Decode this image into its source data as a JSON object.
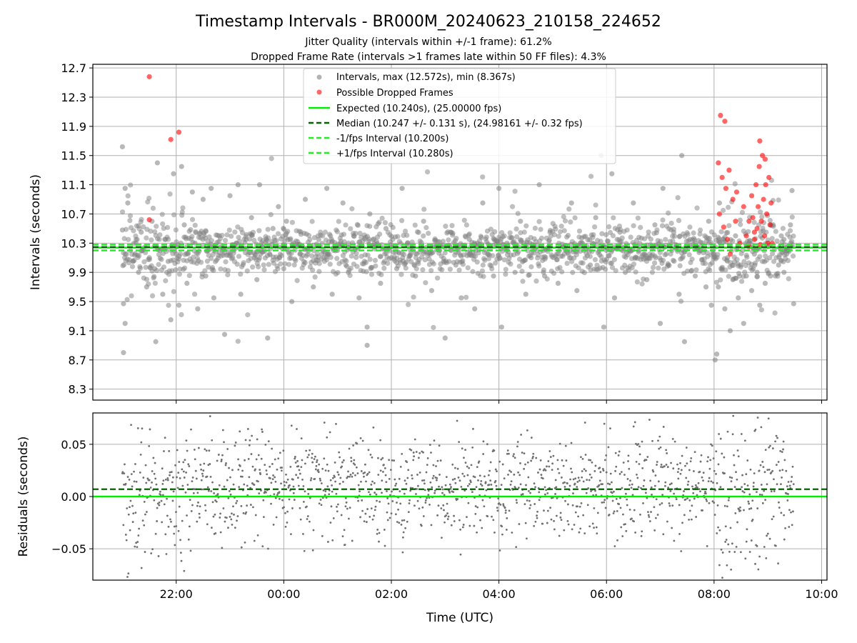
{
  "chart_data": {
    "title": "Timestamp Intervals - BR000M_20240623_210158_224652",
    "subtitle_1": "Jitter Quality (intervals within +/-1 frame): 61.2%",
    "subtitle_2": "Dropped Frame Rate (intervals >1 frames late within 50 FF files): 4.3%",
    "xlabel": "Time (UTC)",
    "x_ticks": [
      "22:00",
      "00:00",
      "02:00",
      "04:00",
      "06:00",
      "08:00",
      "10:00"
    ],
    "x_tick_hours": [
      22,
      24,
      26,
      28,
      30,
      32,
      34
    ],
    "x_range_hours": [
      20.45,
      34.1
    ],
    "top": {
      "type": "scatter",
      "ylabel": "Intervals (seconds)",
      "ylim": [
        8.15,
        12.75
      ],
      "y_ticks": [
        "8.3",
        "8.7",
        "9.1",
        "9.5",
        "9.9",
        "10.3",
        "10.7",
        "11.1",
        "11.5",
        "11.9",
        "12.3",
        "12.7"
      ],
      "y_tick_values": [
        8.3,
        8.7,
        9.1,
        9.5,
        9.9,
        10.3,
        10.7,
        11.1,
        11.5,
        11.9,
        12.3,
        12.7
      ],
      "grid": true,
      "expected": 10.24,
      "median": 10.247,
      "minus_fps": 10.2,
      "plus_fps": 10.28,
      "interval_samples": [
        [
          21.0,
          11.62
        ],
        [
          21.0,
          10.48
        ],
        [
          21.05,
          11.05
        ],
        [
          21.02,
          9.47
        ],
        [
          21.05,
          9.2
        ],
        [
          21.02,
          8.8
        ],
        [
          21.1,
          10.85
        ],
        [
          21.15,
          10.2
        ],
        [
          21.2,
          10.05
        ],
        [
          21.25,
          10.3
        ],
        [
          21.3,
          9.9
        ],
        [
          21.35,
          10.45
        ],
        [
          21.45,
          9.7
        ],
        [
          21.5,
          10.1
        ],
        [
          21.55,
          10.6
        ],
        [
          21.6,
          9.95
        ],
        [
          21.65,
          11.4
        ],
        [
          21.62,
          8.95
        ],
        [
          21.7,
          10.2
        ],
        [
          21.75,
          9.6
        ],
        [
          21.8,
          10.35
        ],
        [
          21.85,
          10.05
        ],
        [
          21.9,
          9.25
        ],
        [
          21.95,
          11.25
        ],
        [
          22.0,
          10.15
        ],
        [
          22.05,
          9.45
        ],
        [
          22.1,
          11.35
        ],
        [
          22.15,
          10.55
        ],
        [
          22.2,
          9.75
        ],
        [
          22.3,
          11.0
        ],
        [
          22.35,
          10.3
        ],
        [
          22.4,
          9.4
        ],
        [
          22.5,
          10.9
        ],
        [
          22.55,
          9.85
        ],
        [
          22.6,
          10.2
        ],
        [
          22.65,
          11.05
        ],
        [
          22.7,
          9.55
        ],
        [
          22.8,
          10.4
        ],
        [
          22.9,
          9.05
        ],
        [
          23.0,
          10.95
        ],
        [
          23.05,
          10.1
        ],
        [
          23.15,
          11.1
        ],
        [
          23.2,
          9.6
        ],
        [
          23.3,
          10.35
        ],
        [
          23.4,
          10.65
        ],
        [
          23.5,
          9.8
        ],
        [
          23.55,
          11.1
        ],
        [
          23.6,
          10.25
        ],
        [
          23.7,
          9.0
        ],
        [
          23.8,
          10.5
        ],
        [
          23.9,
          10.8
        ],
        [
          24.0,
          9.95
        ],
        [
          24.05,
          10.6
        ],
        [
          24.15,
          9.5
        ],
        [
          24.3,
          10.15
        ],
        [
          24.4,
          10.9
        ],
        [
          24.55,
          9.7
        ],
        [
          24.65,
          10.35
        ],
        [
          24.8,
          11.05
        ],
        [
          24.9,
          9.6
        ],
        [
          25.0,
          10.2
        ],
        [
          25.1,
          10.85
        ],
        [
          25.2,
          9.9
        ],
        [
          25.3,
          10.4
        ],
        [
          25.4,
          9.55
        ],
        [
          25.5,
          10.05
        ],
        [
          25.55,
          9.15
        ],
        [
          25.55,
          8.9
        ],
        [
          25.6,
          10.7
        ],
        [
          25.7,
          10.25
        ],
        [
          25.8,
          9.75
        ],
        [
          25.9,
          10.5
        ],
        [
          26.0,
          10.1
        ],
        [
          26.1,
          9.95
        ],
        [
          26.2,
          11.05
        ],
        [
          26.3,
          10.3
        ],
        [
          26.45,
          9.85
        ],
        [
          26.6,
          10.6
        ],
        [
          26.75,
          9.65
        ],
        [
          26.9,
          10.2
        ],
        [
          27.0,
          9.0
        ],
        [
          27.1,
          10.45
        ],
        [
          27.2,
          10.0
        ],
        [
          27.3,
          9.55
        ],
        [
          27.45,
          10.35
        ],
        [
          27.55,
          9.4
        ],
        [
          27.7,
          10.85
        ],
        [
          27.8,
          10.15
        ],
        [
          27.9,
          9.85
        ],
        [
          28.0,
          11.05
        ],
        [
          28.05,
          9.15
        ],
        [
          28.15,
          10.3
        ],
        [
          28.3,
          9.9
        ],
        [
          28.4,
          10.6
        ],
        [
          28.5,
          9.6
        ],
        [
          28.6,
          10.1
        ],
        [
          28.75,
          11.1
        ],
        [
          28.85,
          9.85
        ],
        [
          28.95,
          10.45
        ],
        [
          29.1,
          9.75
        ],
        [
          29.2,
          10.25
        ],
        [
          29.35,
          10.85
        ],
        [
          29.45,
          9.65
        ],
        [
          29.55,
          10.3
        ],
        [
          29.7,
          10.0
        ],
        [
          29.8,
          10.65
        ],
        [
          29.9,
          11.5
        ],
        [
          29.95,
          9.15
        ],
        [
          30.0,
          10.2
        ],
        [
          30.1,
          11.25
        ],
        [
          30.15,
          9.55
        ],
        [
          30.25,
          10.45
        ],
        [
          30.35,
          9.9
        ],
        [
          30.5,
          10.85
        ],
        [
          30.6,
          10.2
        ],
        [
          30.75,
          9.8
        ],
        [
          30.9,
          10.55
        ],
        [
          31.0,
          9.2
        ],
        [
          31.05,
          11.05
        ],
        [
          31.15,
          10.0
        ],
        [
          31.25,
          10.45
        ],
        [
          31.35,
          9.6
        ],
        [
          31.4,
          11.5
        ],
        [
          31.45,
          8.95
        ],
        [
          31.55,
          10.35
        ],
        [
          31.65,
          9.85
        ],
        [
          31.75,
          10.2
        ],
        [
          31.85,
          9.7
        ],
        [
          31.9,
          10.6
        ],
        [
          31.95,
          9.45
        ],
        [
          32.0,
          10.15
        ],
        [
          32.02,
          8.7
        ],
        [
          32.05,
          8.78
        ],
        [
          32.08,
          9.7
        ],
        [
          32.1,
          10.85
        ],
        [
          32.15,
          9.95
        ],
        [
          32.2,
          9.4
        ],
        [
          32.25,
          10.1
        ],
        [
          32.3,
          9.1
        ],
        [
          32.35,
          9.8
        ],
        [
          32.4,
          10.4
        ],
        [
          32.45,
          9.55
        ],
        [
          32.5,
          10.0
        ],
        [
          32.55,
          9.2
        ],
        [
          32.6,
          9.85
        ],
        [
          32.65,
          10.3
        ],
        [
          32.7,
          9.65
        ],
        [
          32.75,
          10.15
        ],
        [
          32.8,
          9.9
        ],
        [
          32.85,
          9.45
        ],
        [
          32.9,
          10.05
        ],
        [
          32.95,
          9.75
        ],
        [
          33.0,
          10.25
        ],
        [
          33.05,
          9.85
        ],
        [
          33.1,
          10.55
        ],
        [
          33.2,
          10.0
        ],
        [
          33.25,
          10.4
        ],
        [
          33.3,
          9.9
        ],
        [
          33.35,
          10.15
        ],
        [
          33.45,
          11.02
        ],
        [
          33.48,
          9.47
        ],
        [
          33.42,
          10.55
        ],
        [
          33.38,
          10.2
        ],
        [
          33.3,
          10.35
        ]
      ],
      "dropped_samples": [
        [
          21.5,
          12.58
        ],
        [
          21.9,
          11.72
        ],
        [
          22.05,
          11.82
        ],
        [
          21.5,
          10.62
        ],
        [
          32.08,
          11.4
        ],
        [
          32.12,
          12.05
        ],
        [
          32.2,
          11.97
        ],
        [
          32.15,
          11.2
        ],
        [
          32.22,
          11.05
        ],
        [
          32.28,
          11.3
        ],
        [
          32.35,
          10.9
        ],
        [
          32.42,
          11.0
        ],
        [
          32.1,
          10.7
        ],
        [
          32.18,
          10.52
        ],
        [
          32.25,
          10.35
        ],
        [
          32.3,
          10.15
        ],
        [
          32.4,
          10.6
        ],
        [
          32.48,
          10.3
        ],
        [
          32.55,
          10.8
        ],
        [
          32.6,
          10.4
        ],
        [
          32.65,
          10.25
        ],
        [
          32.7,
          10.95
        ],
        [
          32.72,
          10.65
        ],
        [
          32.75,
          10.35
        ],
        [
          32.78,
          11.1
        ],
        [
          32.8,
          10.5
        ],
        [
          32.82,
          10.8
        ],
        [
          32.84,
          11.35
        ],
        [
          32.86,
          10.28
        ],
        [
          32.88,
          10.6
        ],
        [
          32.9,
          11.5
        ],
        [
          32.92,
          10.9
        ],
        [
          32.94,
          10.4
        ],
        [
          32.96,
          11.1
        ],
        [
          32.98,
          10.7
        ],
        [
          33.0,
          10.3
        ],
        [
          33.02,
          11.2
        ],
        [
          33.04,
          10.55
        ],
        [
          33.06,
          10.85
        ],
        [
          33.08,
          10.3
        ],
        [
          32.85,
          11.7
        ],
        [
          32.95,
          11.45
        ],
        [
          32.75,
          10.45
        ],
        [
          32.65,
          10.6
        ]
      ]
    },
    "bottom": {
      "type": "scatter",
      "ylabel": "Residuals (seconds)",
      "ylim": [
        -0.08,
        0.08
      ],
      "y_ticks": [
        "−0.05",
        "0.00",
        "0.05"
      ],
      "y_tick_values": [
        -0.05,
        0.0,
        0.05
      ],
      "grid": true,
      "expected_residual": 0.0,
      "median_residual": 0.007
    },
    "legend": {
      "placement": "top-center",
      "entries": [
        "Intervals, max (12.572s), min (8.367s)",
        "Possible Dropped Frames",
        "Expected (10.240s), (25.00000 fps)",
        "Median (10.247 +/- 0.131 s), (24.98161 +/- 0.32 fps)",
        "-1/fps Interval (10.200s)",
        "+1/fps Interval (10.280s)"
      ]
    },
    "colors": {
      "points": "#808080",
      "dropped": "#ff0000",
      "expected": "#00ee00",
      "median": "#006400",
      "fps_bounds": "#22ee22",
      "grid": "#b0b0b0",
      "axes": "#000000"
    }
  }
}
